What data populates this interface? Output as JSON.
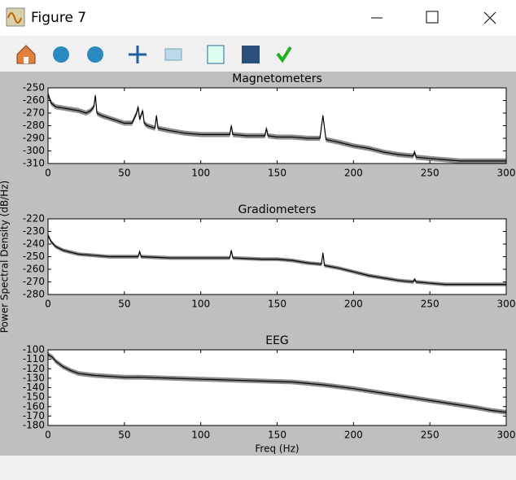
{
  "window_title": "Figure 7",
  "chart_data": [
    {
      "type": "line",
      "title": "Magnetometers",
      "color": "#000000",
      "band_color": "#8c8c8c",
      "band": 2,
      "xlim": [
        0,
        300
      ],
      "ylim": [
        -310,
        -250
      ],
      "xticks": [
        0,
        50,
        100,
        150,
        200,
        250,
        300
      ],
      "yticks": [
        -250,
        -260,
        -270,
        -280,
        -290,
        -300,
        -310
      ],
      "x": [
        0,
        2,
        5,
        10,
        15,
        20,
        25,
        28,
        30,
        31,
        32,
        35,
        40,
        45,
        50,
        55,
        58,
        59,
        60,
        62,
        63,
        65,
        70,
        71,
        72,
        80,
        90,
        100,
        110,
        119,
        120,
        121,
        130,
        142,
        143,
        144,
        150,
        160,
        170,
        178,
        180,
        182,
        190,
        200,
        210,
        220,
        230,
        239,
        240,
        241,
        250,
        260,
        270,
        280,
        290,
        300
      ],
      "values": [
        -255,
        -262,
        -265,
        -266,
        -267,
        -268,
        -270,
        -268,
        -265,
        -256,
        -270,
        -272,
        -274,
        -276,
        -278,
        -278,
        -270,
        -265,
        -275,
        -268,
        -278,
        -280,
        -282,
        -272,
        -282,
        -284,
        -286,
        -287,
        -287,
        -287,
        -280,
        -287,
        -288,
        -288,
        -282,
        -288,
        -289,
        -289,
        -290,
        -290,
        -272,
        -291,
        -293,
        -296,
        -298,
        -301,
        -303,
        -304,
        -301,
        -305,
        -306,
        -307,
        -308,
        -308,
        -308,
        -308
      ]
    },
    {
      "type": "line",
      "title": "Gradiometers",
      "ylabel": "Power Spectral Density (dB/Hz)",
      "color": "#000000",
      "band_color": "#8c8c8c",
      "band": 1.5,
      "xlim": [
        0,
        300
      ],
      "ylim": [
        -280,
        -220
      ],
      "xticks": [
        0,
        50,
        100,
        150,
        200,
        250,
        300
      ],
      "yticks": [
        -220,
        -230,
        -240,
        -250,
        -260,
        -270,
        -280
      ],
      "x": [
        0,
        2,
        5,
        10,
        20,
        30,
        40,
        59,
        60,
        61,
        80,
        100,
        119,
        120,
        121,
        140,
        150,
        160,
        170,
        179,
        180,
        181,
        190,
        200,
        210,
        220,
        230,
        239,
        240,
        241,
        250,
        260,
        270,
        280,
        290,
        300
      ],
      "values": [
        -233,
        -238,
        -242,
        -245,
        -248,
        -249,
        -250,
        -250,
        -246,
        -250,
        -251,
        -251,
        -251,
        -245,
        -251,
        -252,
        -252,
        -253,
        -255,
        -256,
        -247,
        -257,
        -259,
        -262,
        -265,
        -267,
        -269,
        -270,
        -268,
        -270,
        -271,
        -272,
        -272,
        -272,
        -272,
        -272
      ]
    },
    {
      "type": "line",
      "title": "EEG",
      "xlabel": "Freq (Hz)",
      "color": "#000000",
      "band_color": "#8c8c8c",
      "band": 2.5,
      "xlim": [
        0,
        300
      ],
      "ylim": [
        -180,
        -100
      ],
      "xticks": [
        0,
        50,
        100,
        150,
        200,
        250,
        300
      ],
      "yticks": [
        -100,
        -110,
        -120,
        -130,
        -140,
        -150,
        -160,
        -170,
        -180
      ],
      "x": [
        0,
        3,
        5,
        10,
        15,
        20,
        30,
        40,
        50,
        60,
        80,
        100,
        120,
        140,
        160,
        180,
        200,
        220,
        240,
        260,
        280,
        290,
        300
      ],
      "values": [
        -105,
        -108,
        -112,
        -118,
        -122,
        -125,
        -127,
        -128,
        -129,
        -129,
        -130,
        -131,
        -132,
        -133,
        -134,
        -137,
        -141,
        -146,
        -151,
        -156,
        -161,
        -164,
        -166
      ]
    }
  ]
}
